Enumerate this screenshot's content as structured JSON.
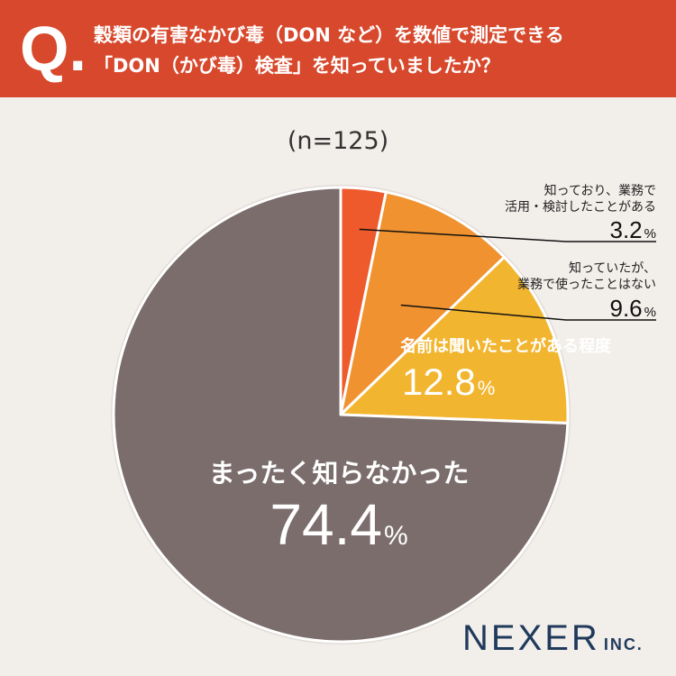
{
  "header": {
    "q_mark": "Q.",
    "question_line1": "穀類の有害なかび毒（DON など）を数値で測定できる",
    "question_line2": "「DON（かび毒）検査」を知っていましたか？"
  },
  "sample_size_label": "(n=125)",
  "footer": {
    "logo_main": "NEXER",
    "logo_sub": "INC."
  },
  "colors": {
    "header_bg": "#d7482c",
    "background": "#f2eeea",
    "slice_used": "#ee5a2b",
    "slice_knew_not_used": "#f0922f",
    "slice_heard_name": "#f2b52f",
    "slice_did_not_know": "#7a6d6c"
  },
  "chart_data": {
    "type": "pie",
    "start_angle": "12 o'clock",
    "direction": "clockwise",
    "title": "",
    "slices": [
      {
        "label_lines": [
          "知っており、業務で",
          "活用・検討したことがある"
        ],
        "value": 3.2,
        "display_value": "3.2",
        "unit": "%",
        "color": "#ee5a2b"
      },
      {
        "label_lines": [
          "知っていたが、",
          "業務で使ったことはない"
        ],
        "value": 9.6,
        "display_value": "9.6",
        "unit": "%",
        "color": "#f0922f"
      },
      {
        "label_lines": [
          "名前は聞いたことがある程度"
        ],
        "value": 12.8,
        "display_value": "12.8",
        "unit": "%",
        "color": "#f2b52f"
      },
      {
        "label_lines": [
          "まったく知らなかった"
        ],
        "value": 74.4,
        "display_value": "74.4",
        "unit": "%",
        "color": "#7a6d6c"
      }
    ]
  }
}
